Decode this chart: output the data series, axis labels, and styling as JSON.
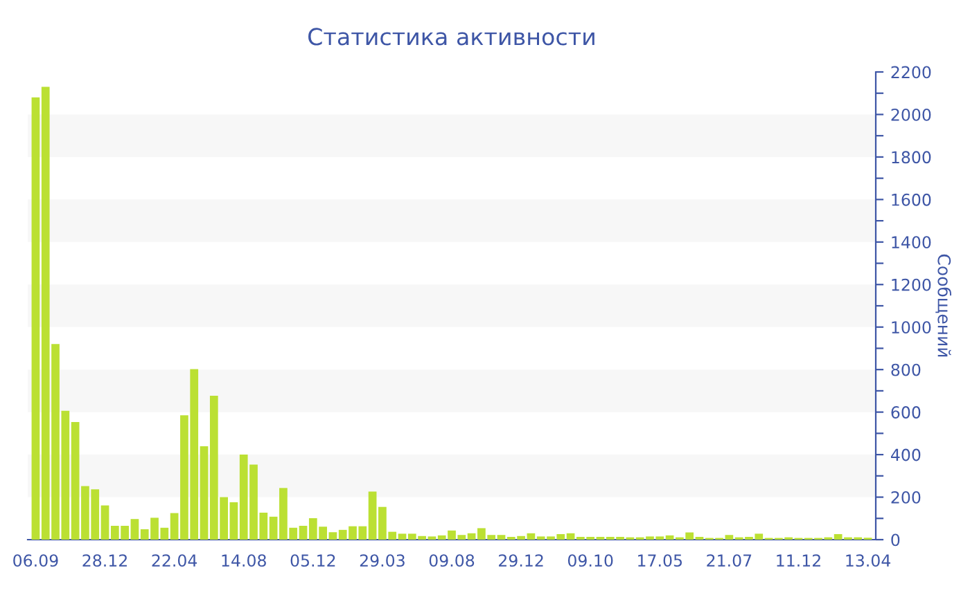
{
  "chart_data": {
    "type": "bar",
    "title": "Статистика активности",
    "ylabel": "Сообщений",
    "categories": [
      "06.09",
      null,
      null,
      null,
      null,
      null,
      null,
      "28.12",
      null,
      null,
      null,
      null,
      null,
      null,
      "22.04",
      null,
      null,
      null,
      null,
      null,
      null,
      "14.08",
      null,
      null,
      null,
      null,
      null,
      null,
      "05.12",
      null,
      null,
      null,
      null,
      null,
      null,
      "29.03",
      null,
      null,
      null,
      null,
      null,
      null,
      "09.08",
      null,
      null,
      null,
      null,
      null,
      null,
      "29.12",
      null,
      null,
      null,
      null,
      null,
      null,
      "09.10",
      null,
      null,
      null,
      null,
      null,
      null,
      "17.05",
      null,
      null,
      null,
      null,
      null,
      null,
      "21.07",
      null,
      null,
      null,
      null,
      null,
      null,
      "11.12",
      null,
      null,
      null,
      null,
      null,
      null,
      "13.04"
    ],
    "values": [
      2080,
      2130,
      920,
      606,
      553,
      252,
      237,
      161,
      65,
      65,
      97,
      49,
      103,
      56,
      125,
      585,
      802,
      439,
      677,
      200,
      176,
      400,
      353,
      127,
      108,
      243,
      56,
      65,
      101,
      61,
      35,
      46,
      63,
      63,
      226,
      154,
      37,
      28,
      28,
      17,
      15,
      20,
      43,
      22,
      30,
      54,
      22,
      22,
      13,
      17,
      30,
      15,
      15,
      26,
      30,
      13,
      13,
      13,
      13,
      13,
      11,
      11,
      15,
      15,
      20,
      11,
      34,
      13,
      8,
      8,
      22,
      11,
      13,
      28,
      8,
      8,
      11,
      8,
      8,
      8,
      11,
      26,
      11,
      11,
      9
    ],
    "color": "#bbe033",
    "ylim": [
      0,
      2200
    ],
    "yticks": [
      0,
      {
        "value": 100,
        "label": null
      },
      200,
      {
        "value": 300,
        "label": null
      },
      400,
      {
        "value": 500,
        "label": null
      },
      600,
      {
        "value": 700,
        "label": null
      },
      800,
      {
        "value": 900,
        "label": null
      },
      1000,
      {
        "value": 1100,
        "label": null
      },
      1200,
      {
        "value": 1300,
        "label": null
      },
      1400,
      {
        "value": 1500,
        "label": null
      },
      1600,
      {
        "value": 1700,
        "label": null
      },
      1800,
      {
        "value": 1900,
        "label": null
      },
      2000,
      {
        "value": 2100,
        "label": null
      },
      2200
    ],
    "bands": [
      {
        "axis": "y",
        "from": 200,
        "to": 400,
        "color": "#f7f7f7"
      },
      {
        "axis": "y",
        "from": 600,
        "to": 800,
        "color": "#f7f7f7"
      },
      {
        "axis": "y",
        "from": 1000,
        "to": 1200,
        "color": "#f7f7f7"
      },
      {
        "axis": "y",
        "from": 1400,
        "to": 1600,
        "color": "#f7f7f7"
      },
      {
        "axis": "y",
        "from": 1800,
        "to": 2000,
        "color": "#f7f7f7"
      }
    ],
    "legend": false
  }
}
